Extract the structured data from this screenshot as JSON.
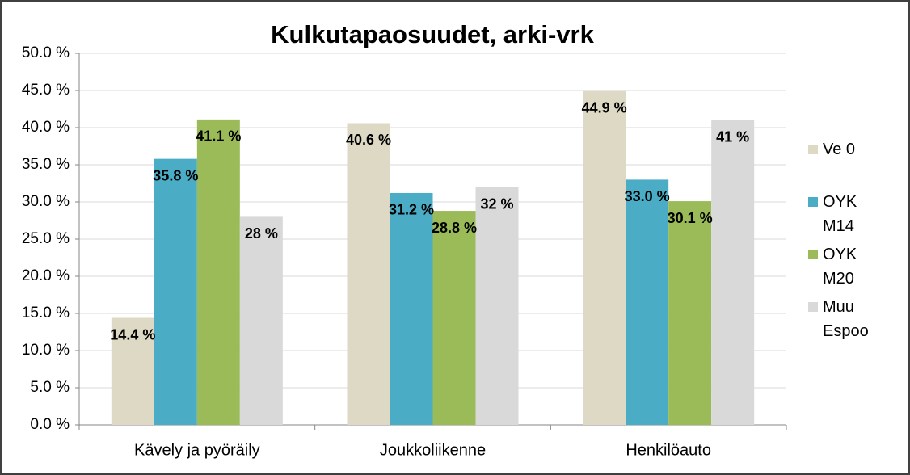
{
  "chart_data": {
    "type": "bar",
    "title": "Kulkutapaosuudet, arki-vrk",
    "categories": [
      "Kävely ja pyöräily",
      "Joukkoliikenne",
      "Henkilöauto"
    ],
    "series": [
      {
        "name": "Ve 0",
        "color": "#ddd9c4",
        "values": [
          14.4,
          40.6,
          44.9
        ],
        "value_labels": [
          "14.4 %",
          "40.6 %",
          "44.9 %"
        ]
      },
      {
        "name": "OYK M14",
        "color": "#4bacc6",
        "values": [
          35.8,
          31.2,
          33.0
        ],
        "value_labels": [
          "35.8 %",
          "31.2 %",
          "33.0 %"
        ]
      },
      {
        "name": "OYK M20",
        "color": "#9bbb59",
        "values": [
          41.1,
          28.8,
          30.1
        ],
        "value_labels": [
          "41.1 %",
          "28.8 %",
          "30.1 %"
        ]
      },
      {
        "name": "Muu Espoo",
        "color": "#d9d9d9",
        "values": [
          28,
          32,
          41
        ],
        "value_labels": [
          "28 %",
          "32 %",
          "41 %"
        ]
      }
    ],
    "ylim": [
      0,
      50
    ],
    "yticks": [
      {
        "value": 0,
        "label": "0.0 %"
      },
      {
        "value": 5,
        "label": "5.0 %"
      },
      {
        "value": 10,
        "label": "10.0 %"
      },
      {
        "value": 15,
        "label": "15.0 %"
      },
      {
        "value": 20,
        "label": "20.0 %"
      },
      {
        "value": 25,
        "label": "25.0 %"
      },
      {
        "value": 30,
        "label": "30.0 %"
      },
      {
        "value": 35,
        "label": "35.0 %"
      },
      {
        "value": 40,
        "label": "40.0 %"
      },
      {
        "value": 45,
        "label": "45.0 %"
      },
      {
        "value": 50,
        "label": "50.0 %"
      }
    ],
    "grid": true,
    "legend": "right"
  }
}
